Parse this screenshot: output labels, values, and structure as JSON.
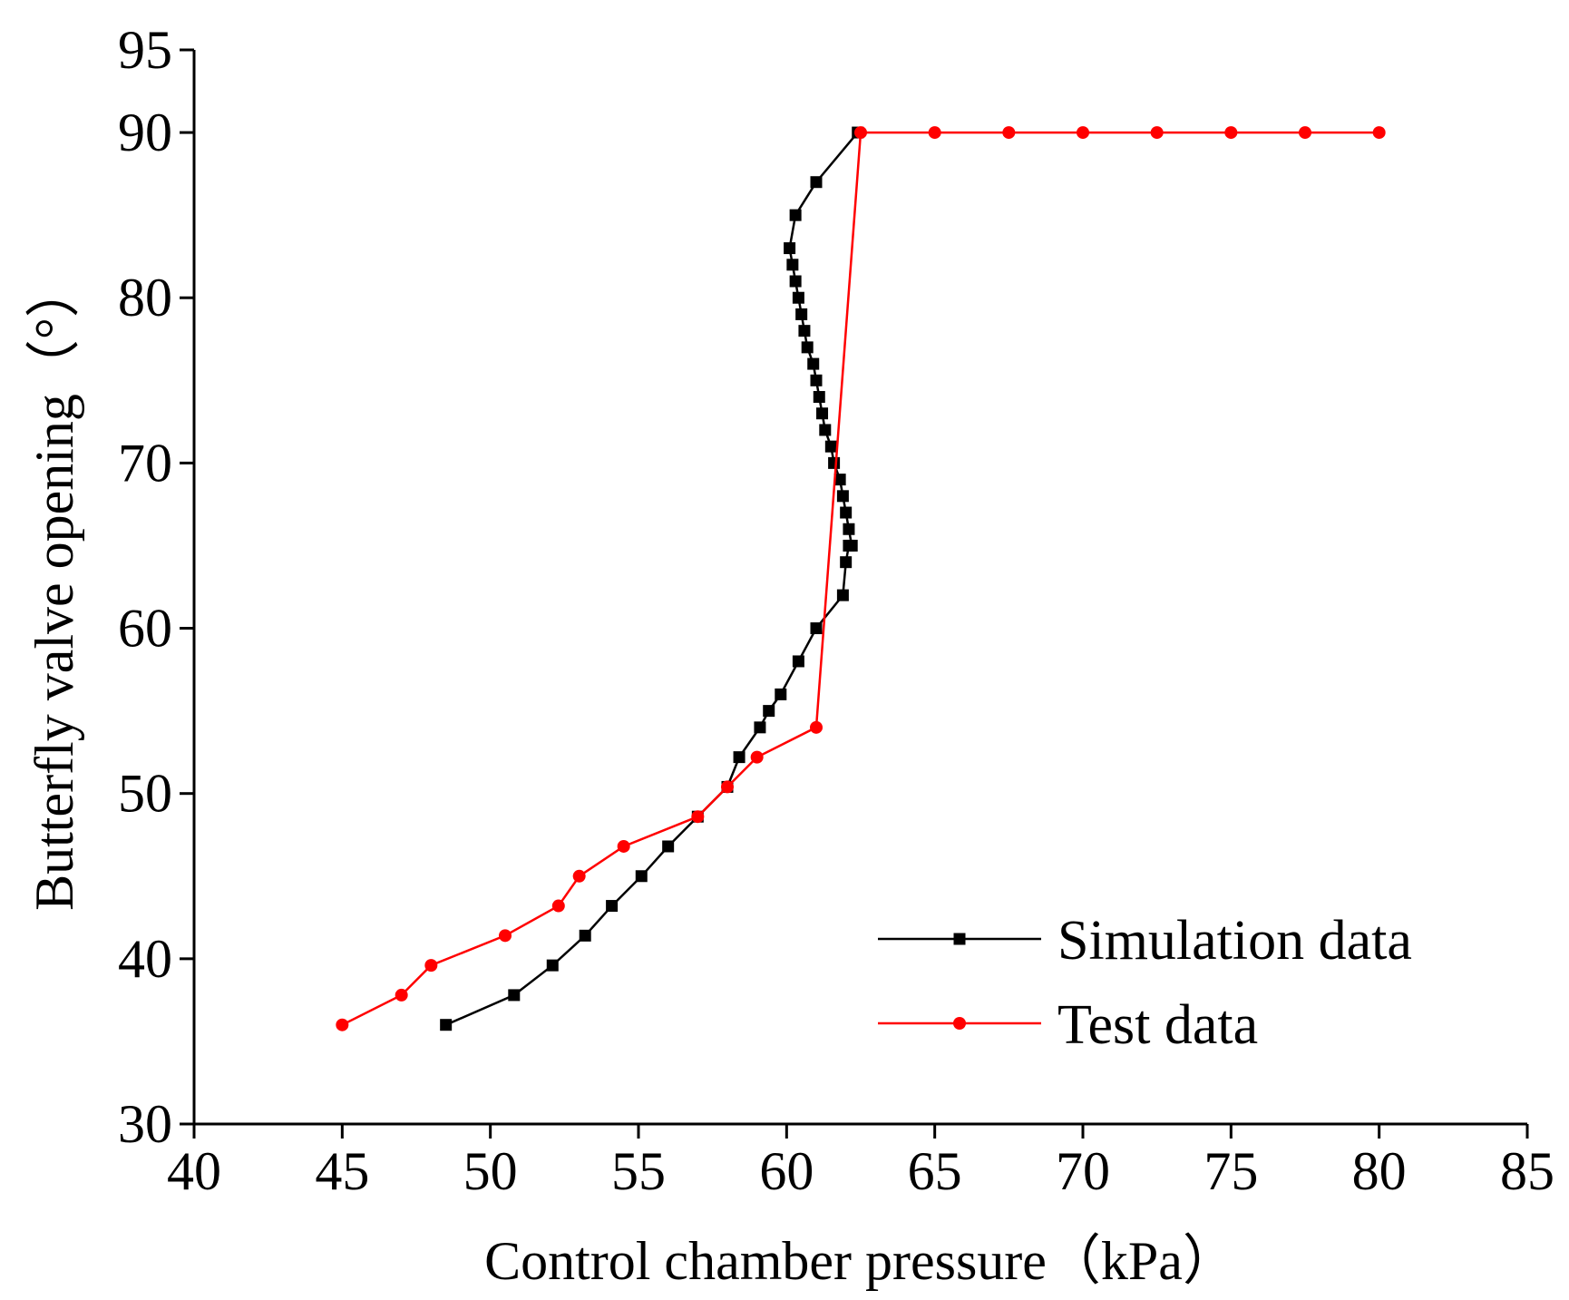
{
  "chart_data": {
    "type": "line",
    "title": "",
    "xlabel": "Control chamber pressure（kPa）",
    "ylabel": "Butterfly valve opening（°）",
    "xlim": [
      40,
      85
    ],
    "ylim": [
      30,
      95
    ],
    "x_ticks": [
      40,
      45,
      50,
      55,
      60,
      65,
      70,
      75,
      80,
      85
    ],
    "y_ticks": [
      30,
      40,
      50,
      60,
      70,
      80,
      90,
      95
    ],
    "grid": false,
    "legend_position": "bottom-right",
    "series": [
      {
        "name": "Simulation data",
        "color": "#000000",
        "marker": "square",
        "x": [
          48.5,
          50.8,
          52.1,
          53.2,
          54.1,
          55.1,
          56.0,
          57.0,
          58.0,
          58.4,
          59.1,
          59.4,
          59.8,
          60.4,
          61.0,
          61.9,
          62.0,
          62.1,
          62.2,
          62.1,
          62.0,
          61.9,
          61.8,
          61.6,
          61.5,
          61.3,
          61.2,
          61.1,
          61.0,
          60.9,
          60.7,
          60.6,
          60.5,
          60.4,
          60.3,
          60.2,
          60.1,
          60.3,
          61.0,
          62.4
        ],
        "y": [
          36,
          37.8,
          39.6,
          41.4,
          43.2,
          45,
          46.8,
          48.6,
          50.4,
          52.2,
          54,
          55,
          56,
          58,
          60,
          62,
          64,
          65,
          65,
          66,
          67,
          68,
          69,
          70,
          71,
          72,
          73,
          74,
          75,
          76,
          77,
          78,
          79,
          80,
          81,
          82,
          83,
          85,
          87,
          90
        ]
      },
      {
        "name": "Test data",
        "color": "#ff0000",
        "marker": "circle",
        "x": [
          45,
          47,
          48,
          50.5,
          52.3,
          53,
          54.5,
          57,
          58,
          59,
          61,
          62.5,
          65,
          67.5,
          70,
          72.5,
          75,
          77.5,
          80
        ],
        "y": [
          36,
          37.8,
          39.6,
          41.4,
          43.2,
          45,
          46.8,
          48.6,
          50.4,
          52.2,
          54,
          90,
          90,
          90,
          90,
          90,
          90,
          90,
          90
        ]
      }
    ]
  }
}
